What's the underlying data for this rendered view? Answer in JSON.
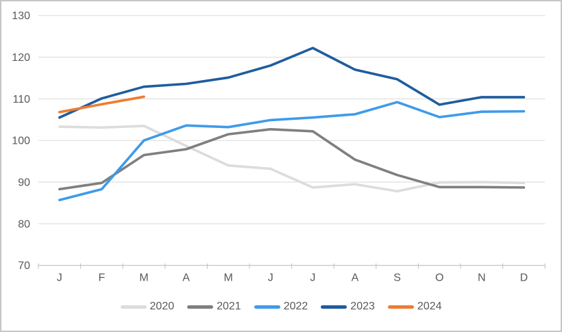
{
  "chart_data": {
    "type": "line",
    "categories": [
      "J",
      "F",
      "M",
      "A",
      "M",
      "J",
      "J",
      "A",
      "S",
      "O",
      "N",
      "D"
    ],
    "series": [
      {
        "name": "2020",
        "color": "#dcdcdc",
        "values": [
          103.3,
          103.1,
          103.5,
          98.7,
          94.0,
          93.2,
          88.7,
          89.5,
          87.8,
          89.9,
          90.0,
          89.8
        ]
      },
      {
        "name": "2021",
        "color": "#7f7f7f",
        "values": [
          88.3,
          89.8,
          96.5,
          97.9,
          101.5,
          102.7,
          102.2,
          95.4,
          91.7,
          88.8,
          88.8,
          88.7
        ]
      },
      {
        "name": "2022",
        "color": "#3e9be9",
        "values": [
          85.7,
          88.3,
          100.0,
          103.6,
          103.2,
          104.9,
          105.5,
          106.3,
          109.2,
          105.6,
          106.9,
          107.0
        ]
      },
      {
        "name": "2023",
        "color": "#1f5c9e",
        "values": [
          105.5,
          110.1,
          112.9,
          113.6,
          115.1,
          118.0,
          122.2,
          117.0,
          114.7,
          108.6,
          110.4,
          110.4
        ]
      },
      {
        "name": "2024",
        "color": "#ed7d31",
        "values": [
          106.8,
          108.7,
          110.5
        ]
      }
    ],
    "title": "",
    "xlabel": "",
    "ylabel": "",
    "ylim": [
      70,
      130
    ],
    "yticks": [
      70,
      80,
      90,
      100,
      110,
      120,
      130
    ],
    "grid": true,
    "legend_position": "bottom",
    "legend_labels": [
      "2020",
      "2021",
      "2022",
      "2023",
      "2024"
    ]
  },
  "colors": {
    "background": "#ffffff",
    "gridline": "#d9d9d9",
    "axis_line": "#bfbfbf",
    "tick": "#bfbfbf",
    "label_text": "#595959",
    "frame_border": "#c7c5c5"
  }
}
